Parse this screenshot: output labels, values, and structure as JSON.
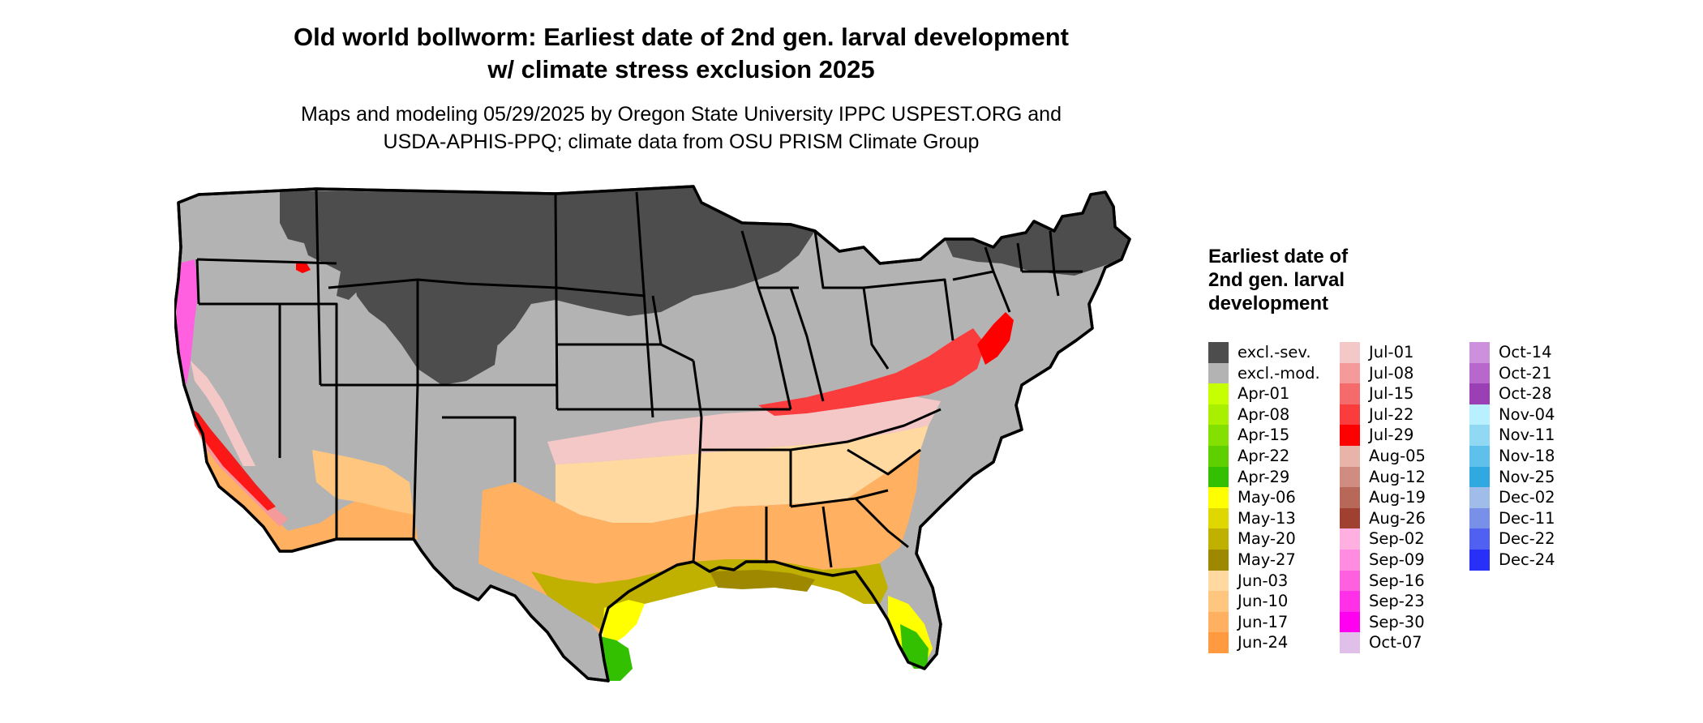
{
  "title_line1": "Old world bollworm: Earliest date of 2nd gen. larval development",
  "title_line2": "w/ climate stress exclusion 2025",
  "subtitle_line1": "Maps and modeling 05/29/2025 by Oregon State University IPPC USPEST.ORG and",
  "subtitle_line2": "USDA-APHIS-PPQ; climate data from OSU PRISM Climate Group",
  "legend": {
    "title": "Earliest date of 2nd gen. larval development",
    "items": [
      {
        "label": "excl.-sev.",
        "color": "#4d4d4d"
      },
      {
        "label": "excl.-mod.",
        "color": "#b3b3b3"
      },
      {
        "label": "Apr-01",
        "color": "#c6ff00"
      },
      {
        "label": "Apr-08",
        "color": "#a8f000"
      },
      {
        "label": "Apr-15",
        "color": "#84e000"
      },
      {
        "label": "Apr-22",
        "color": "#5ed000"
      },
      {
        "label": "Apr-29",
        "color": "#33c000"
      },
      {
        "label": "May-06",
        "color": "#ffff00"
      },
      {
        "label": "May-13",
        "color": "#dfd800"
      },
      {
        "label": "May-20",
        "color": "#c0b000"
      },
      {
        "label": "May-27",
        "color": "#9e8800"
      },
      {
        "label": "Jun-03",
        "color": "#ffd9a0"
      },
      {
        "label": "Jun-10",
        "color": "#ffc680"
      },
      {
        "label": "Jun-17",
        "color": "#ffb060"
      },
      {
        "label": "Jun-24",
        "color": "#ff9a40"
      },
      {
        "label": "Jul-01",
        "color": "#f5c8c8"
      },
      {
        "label": "Jul-08",
        "color": "#f59a9a"
      },
      {
        "label": "Jul-15",
        "color": "#f56a6a"
      },
      {
        "label": "Jul-22",
        "color": "#fa3c3c"
      },
      {
        "label": "Jul-29",
        "color": "#ff0000"
      },
      {
        "label": "Aug-05",
        "color": "#e8b4aa"
      },
      {
        "label": "Aug-12",
        "color": "#d08c80"
      },
      {
        "label": "Aug-19",
        "color": "#b86858"
      },
      {
        "label": "Aug-26",
        "color": "#a04030"
      },
      {
        "label": "Sep-02",
        "color": "#ffb0e0"
      },
      {
        "label": "Sep-09",
        "color": "#ff8ce0"
      },
      {
        "label": "Sep-16",
        "color": "#ff60e0"
      },
      {
        "label": "Sep-23",
        "color": "#ff30e8"
      },
      {
        "label": "Sep-30",
        "color": "#ff00f0"
      },
      {
        "label": "Oct-07",
        "color": "#e0c0e8"
      },
      {
        "label": "Oct-14",
        "color": "#cc90dc"
      },
      {
        "label": "Oct-21",
        "color": "#b868cc"
      },
      {
        "label": "Oct-28",
        "color": "#9a40b4"
      },
      {
        "label": "Nov-04",
        "color": "#b8f0ff"
      },
      {
        "label": "Nov-11",
        "color": "#90d8f4"
      },
      {
        "label": "Nov-18",
        "color": "#60c0ec"
      },
      {
        "label": "Nov-25",
        "color": "#30a8e0"
      },
      {
        "label": "Dec-02",
        "color": "#a0bce8"
      },
      {
        "label": "Dec-11",
        "color": "#7890e8"
      },
      {
        "label": "Dec-22",
        "color": "#5060f0"
      },
      {
        "label": "Dec-24",
        "color": "#2830f8"
      }
    ]
  },
  "map_colors": {
    "excluded_severe": "#4d4d4d",
    "excluded_moderate": "#b3b3b3",
    "state_border": "#000000"
  }
}
